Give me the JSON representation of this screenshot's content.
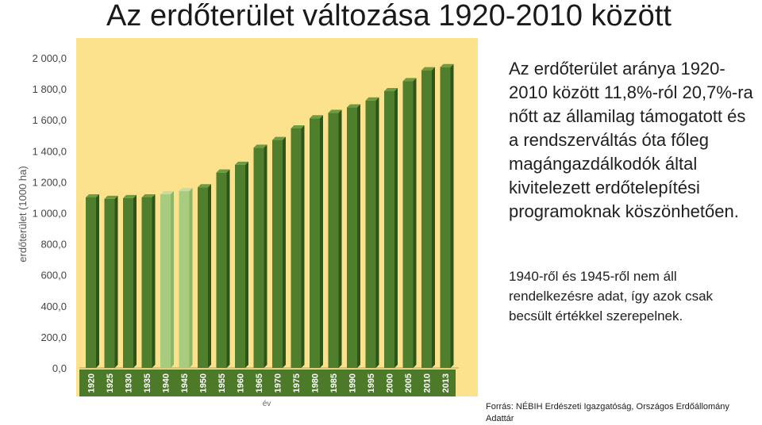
{
  "title": "Az erdőterület változása 1920-2010 között",
  "chart_data": {
    "type": "bar",
    "ylabel": "erdőterület (1000 ha)",
    "xlabel": "év",
    "ylim": [
      0,
      2000
    ],
    "y_ticks": [
      "0,0",
      "200,0",
      "400,0",
      "600,0",
      "800,0",
      "1 000,0",
      "1 200,0",
      "1 400,0",
      "1 600,0",
      "1 800,0",
      "2 000,0"
    ],
    "categories": [
      "1920",
      "1925",
      "1930",
      "1935",
      "1940",
      "1945",
      "1950",
      "1955",
      "1960",
      "1965",
      "1970",
      "1975",
      "1980",
      "1985",
      "1990",
      "1995",
      "2000",
      "2005",
      "2010",
      "2013"
    ],
    "values": [
      1100,
      1090,
      1095,
      1100,
      1120,
      1140,
      1165,
      1260,
      1310,
      1420,
      1470,
      1545,
      1610,
      1645,
      1680,
      1725,
      1785,
      1850,
      1920,
      1940
    ],
    "estimated_categories": [
      "1940",
      "1945"
    ],
    "colors": {
      "bar": "#4f7f2c",
      "bar_estimated": "#a8cc7e",
      "plot_background": "#fce28c",
      "gridline": "#e8cf74"
    },
    "grid": false,
    "legend": "none"
  },
  "side_text": "Az erdőterület aránya 1920-2010 között 11,8%-ról 20,7%-ra nőtt az államilag támogatott és a rendszerváltás óta főleg magángazdálkodók által kivitelezett erdőtelepítési programoknak köszönhetően.",
  "side_note": "1940-ről és 1945-ről nem áll rendelkezésre adat, így azok csak becsült értékkel szerepelnek.",
  "source": "Forrás: NÉBIH Erdészeti Igazgatóság, Országos Erdőállomány Adattár"
}
